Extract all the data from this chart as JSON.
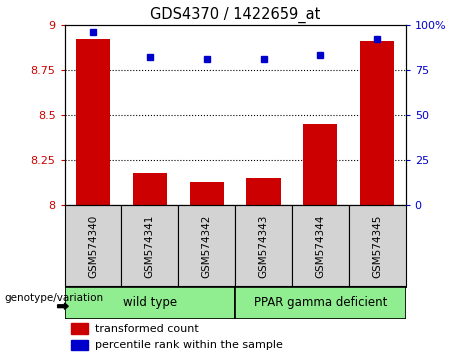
{
  "title": "GDS4370 / 1422659_at",
  "samples": [
    "GSM574340",
    "GSM574341",
    "GSM574342",
    "GSM574343",
    "GSM574344",
    "GSM574345"
  ],
  "transformed_count": [
    8.92,
    8.18,
    8.13,
    8.15,
    8.45,
    8.91
  ],
  "percentile_rank": [
    96,
    82,
    81,
    81,
    83,
    92
  ],
  "ylim_left": [
    8.0,
    9.0
  ],
  "ylim_right": [
    0,
    100
  ],
  "yticks_left": [
    8.0,
    8.25,
    8.5,
    8.75,
    9.0
  ],
  "yticks_right": [
    0,
    25,
    50,
    75,
    100
  ],
  "ytick_labels_left": [
    "8",
    "8.25",
    "8.5",
    "8.75",
    "9"
  ],
  "ytick_labels_right": [
    "0",
    "25",
    "50",
    "75",
    "100%"
  ],
  "grid_levels": [
    8.25,
    8.5,
    8.75
  ],
  "bar_color": "#cc0000",
  "dot_color": "#0000cc",
  "group_wt_label": "wild type",
  "group_ppar_label": "PPAR gamma deficient",
  "group_label_prefix": "genotype/variation",
  "legend_bar_label": "transformed count",
  "legend_dot_label": "percentile rank within the sample",
  "tick_label_color_left": "#cc0000",
  "tick_label_color_right": "#0000cc",
  "gray_box_color": "#d3d3d3",
  "green_box_color": "#90ee90"
}
